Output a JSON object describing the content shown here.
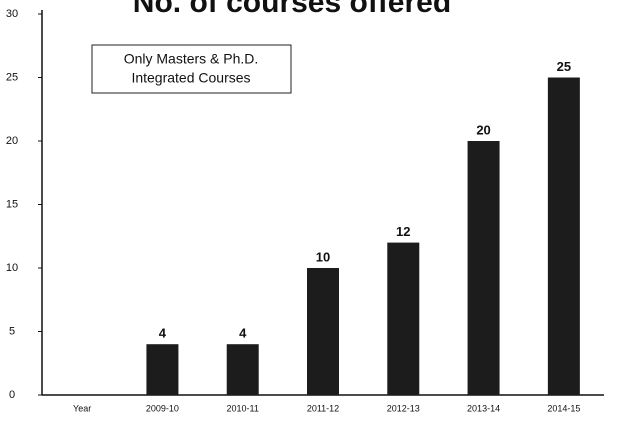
{
  "chart_data": {
    "type": "bar",
    "title": "No. of courses offered",
    "annotation": [
      "Only Masters & Ph.D.",
      "Integrated Courses"
    ],
    "categories": [
      "Year",
      "2009-10",
      "2010-11",
      "2011-12",
      "2012-13",
      "2013-14",
      "2014-15"
    ],
    "values": [
      null,
      4,
      4,
      10,
      12,
      20,
      25
    ],
    "color": "#1c1c1c",
    "ylim": [
      0,
      30
    ],
    "yticks": [
      0,
      5,
      10,
      15,
      20,
      25,
      30
    ],
    "grid": false
  }
}
